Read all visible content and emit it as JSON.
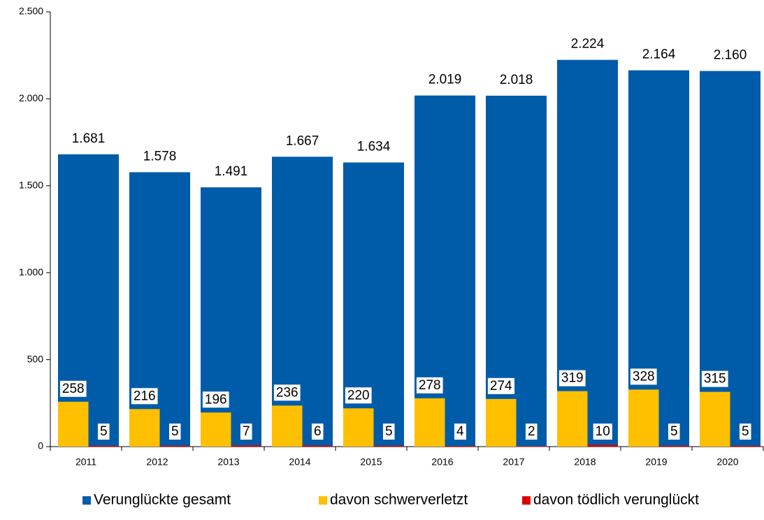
{
  "chart_data": {
    "type": "bar",
    "categories": [
      "2011",
      "2012",
      "2013",
      "2014",
      "2015",
      "2016",
      "2017",
      "2018",
      "2019",
      "2020"
    ],
    "series": [
      {
        "name": "Verunglückte gesamt",
        "color": "#005ca9",
        "values": [
          1681,
          1578,
          1491,
          1667,
          1634,
          2019,
          2018,
          2224,
          2164,
          2160
        ],
        "value_labels": [
          "1.681",
          "1.578",
          "1.491",
          "1.667",
          "1.634",
          "2.019",
          "2.018",
          "2.224",
          "2.164",
          "2.160"
        ]
      },
      {
        "name": "davon schwerverletzt",
        "color": "#ffc000",
        "values": [
          258,
          216,
          196,
          236,
          220,
          278,
          274,
          319,
          328,
          315
        ]
      },
      {
        "name": "davon tödlich verunglückt",
        "color": "#e00000",
        "values": [
          5,
          5,
          7,
          6,
          5,
          4,
          2,
          10,
          5,
          5
        ]
      }
    ],
    "ylim": [
      0,
      2500
    ],
    "yticks": [
      0,
      500,
      {
        "value": 1000,
        "label": "1.000"
      },
      {
        "value": 1500,
        "label": "1.500"
      },
      {
        "value": 2000,
        "label": "2.000"
      },
      {
        "value": 2500,
        "label": "2.500"
      }
    ],
    "legend": "bottom"
  }
}
